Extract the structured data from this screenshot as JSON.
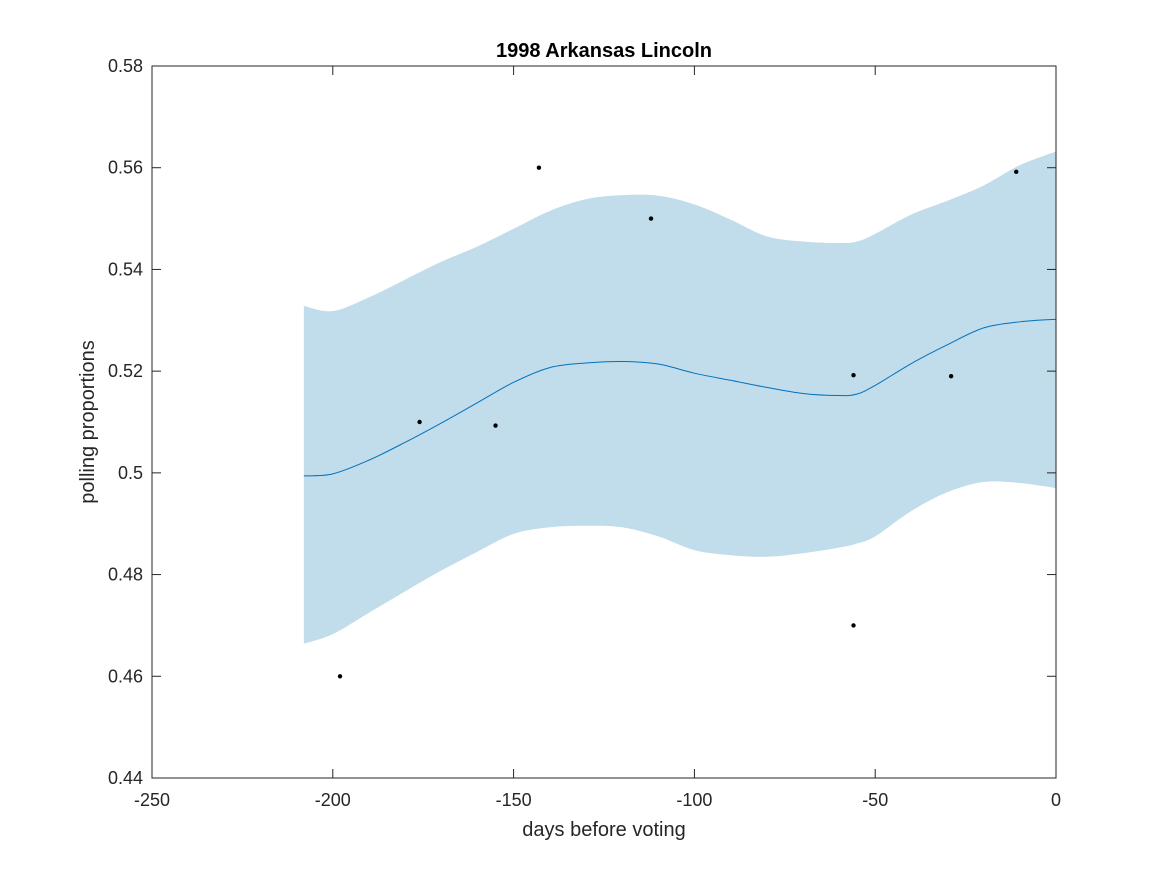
{
  "chart_data": {
    "type": "line",
    "title": "1998 Arkansas Lincoln",
    "xlabel": "days before voting",
    "ylabel": "polling proportions",
    "xlim": [
      -250,
      0
    ],
    "ylim": [
      0.44,
      0.58
    ],
    "xticks": [
      -250,
      -200,
      -150,
      -100,
      -50,
      0
    ],
    "xtick_labels": [
      "-250",
      "-200",
      "-150",
      "-100",
      "-50",
      "0"
    ],
    "yticks": [
      0.44,
      0.46,
      0.48,
      0.5,
      0.52,
      0.54,
      0.56,
      0.58
    ],
    "ytick_labels": [
      "0.44",
      "0.46",
      "0.48",
      "0.5",
      "0.52",
      "0.54",
      "0.56",
      "0.58"
    ],
    "grid": false,
    "series": [
      {
        "kind": "band",
        "x": [
          -208,
          -200,
          -190,
          -180,
          -170,
          -160,
          -150,
          -140,
          -130,
          -120,
          -110,
          -100,
          -90,
          -80,
          -70,
          -60,
          -55,
          -50,
          -40,
          -30,
          -20,
          -10,
          0
        ],
        "upper": [
          0.5328,
          0.5318,
          0.5345,
          0.538,
          0.5415,
          0.5445,
          0.548,
          0.5515,
          0.5538,
          0.5546,
          0.5545,
          0.5528,
          0.5498,
          0.5465,
          0.5455,
          0.5452,
          0.5455,
          0.547,
          0.5508,
          0.5535,
          0.5565,
          0.5605,
          0.5632
        ],
        "lower": [
          0.4664,
          0.4683,
          0.4725,
          0.4767,
          0.4808,
          0.4845,
          0.488,
          0.4893,
          0.4896,
          0.4893,
          0.4875,
          0.4848,
          0.4838,
          0.4835,
          0.4842,
          0.4853,
          0.4861,
          0.4875,
          0.4925,
          0.4962,
          0.4982,
          0.498,
          0.497
        ],
        "color": "#c1dcea"
      },
      {
        "kind": "line",
        "x": [
          -208,
          -200,
          -190,
          -180,
          -170,
          -160,
          -150,
          -140,
          -130,
          -120,
          -110,
          -100,
          -90,
          -80,
          -70,
          -60,
          -55,
          -50,
          -40,
          -30,
          -20,
          -10,
          0
        ],
        "y": [
          0.4994,
          0.4998,
          0.5025,
          0.506,
          0.5098,
          0.5138,
          0.5178,
          0.5207,
          0.5216,
          0.5219,
          0.5214,
          0.5196,
          0.5182,
          0.5168,
          0.5156,
          0.5152,
          0.5155,
          0.5172,
          0.5215,
          0.5252,
          0.5285,
          0.5297,
          0.5302
        ],
        "color": "#0072bd"
      },
      {
        "kind": "scatter",
        "x": [
          -198,
          -176,
          -155,
          -143,
          -112,
          -56,
          -56,
          -29,
          -11
        ],
        "y": [
          0.46,
          0.51,
          0.5093,
          0.56,
          0.55,
          0.5192,
          0.47,
          0.519,
          0.5592
        ],
        "color": "#000000"
      }
    ]
  }
}
